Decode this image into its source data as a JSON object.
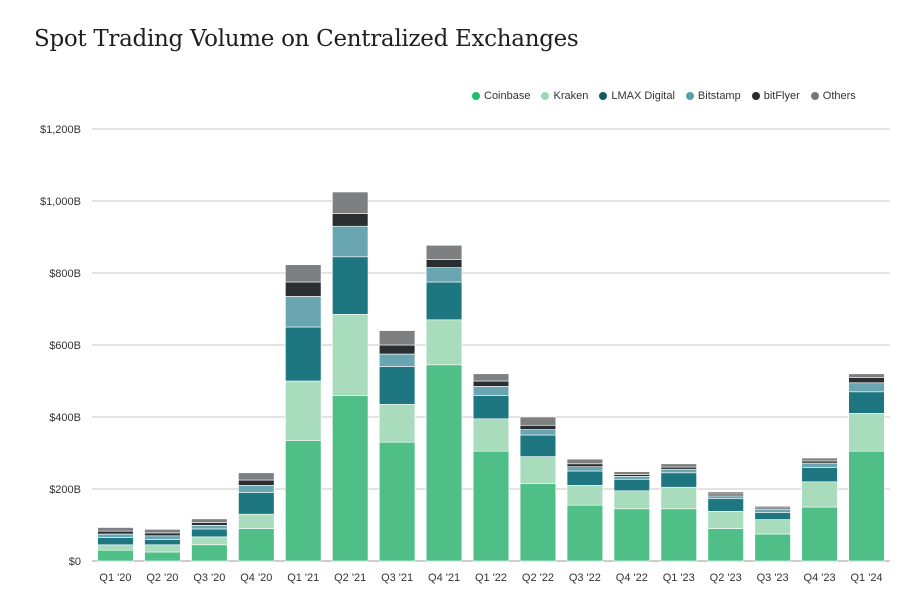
{
  "chart_data": {
    "type": "bar",
    "stacked": true,
    "title": "Spot Trading Volume on Centralized Exchanges",
    "categories": [
      "Q1 '20",
      "Q2 '20",
      "Q3 '20",
      "Q4 '20",
      "Q1 '21",
      "Q2 '21",
      "Q3 '21",
      "Q4 '21",
      "Q1 '22",
      "Q2 '22",
      "Q3 '22",
      "Q4 '22",
      "Q1 '23",
      "Q2 '23",
      "Q3 '23",
      "Q4 '23",
      "Q1 '24"
    ],
    "y_ticks": [
      "$0",
      "$200B",
      "$400B",
      "$600B",
      "$800B",
      "$1,000B",
      "$1,200B"
    ],
    "ylim": [
      0,
      1200
    ],
    "legend_position": "top-right",
    "grid": true,
    "series": [
      {
        "name": "Coinbase",
        "color": "#4fbf87",
        "legend_color": "#1fbe6b",
        "values": [
          30,
          25,
          45,
          90,
          335,
          460,
          330,
          545,
          305,
          215,
          155,
          145,
          145,
          90,
          75,
          150,
          305
        ]
      },
      {
        "name": "Kraken",
        "color": "#a8dcbd",
        "legend_color": "#9ad9b2",
        "values": [
          15,
          20,
          22,
          40,
          165,
          225,
          105,
          125,
          90,
          75,
          55,
          50,
          60,
          48,
          40,
          70,
          105
        ]
      },
      {
        "name": "LMAX Digital",
        "color": "#1d7680",
        "legend_color": "#0f5c61",
        "values": [
          20,
          15,
          22,
          60,
          150,
          160,
          105,
          105,
          65,
          60,
          40,
          32,
          40,
          35,
          20,
          40,
          60
        ]
      },
      {
        "name": "Bitstamp",
        "color": "#6aa6b2",
        "legend_color": "#5a9fae",
        "values": [
          10,
          10,
          10,
          20,
          85,
          85,
          35,
          40,
          25,
          15,
          12,
          8,
          10,
          8,
          8,
          12,
          25
        ]
      },
      {
        "name": "bitFlyer",
        "color": "#2b2e30",
        "legend_color": "#2b2b2b",
        "values": [
          8,
          8,
          8,
          15,
          40,
          35,
          25,
          22,
          15,
          12,
          8,
          5,
          6,
          5,
          4,
          6,
          15
        ]
      },
      {
        "name": "Others",
        "color": "#7d7f80",
        "legend_color": "#777777",
        "values": [
          10,
          10,
          10,
          20,
          48,
          60,
          40,
          40,
          20,
          23,
          13,
          8,
          9,
          6,
          5,
          8,
          10
        ]
      }
    ]
  }
}
